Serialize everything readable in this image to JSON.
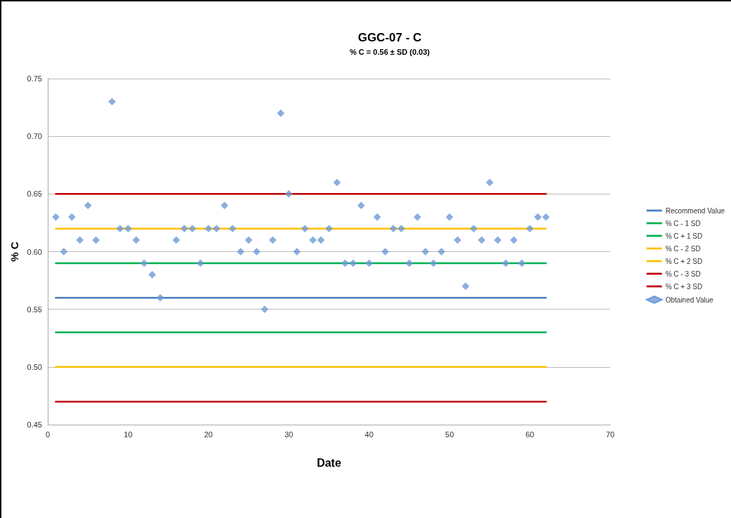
{
  "chart_data": {
    "type": "line",
    "title": "GGC-07 - C",
    "subtitle": "% C = 0.56 ± SD (0.03)",
    "xlabel": "Date",
    "ylabel": "% C",
    "xlim": [
      0,
      70
    ],
    "xticks": [
      0,
      10,
      20,
      30,
      40,
      50,
      60,
      70
    ],
    "ylim": [
      0.45,
      0.75
    ],
    "yticks": [
      0.45,
      {
        "value": 0.5,
        "label": "0.50"
      },
      0.55,
      {
        "value": 0.6,
        "label": "0.60"
      },
      0.65,
      {
        "value": 0.7,
        "label": "0.70"
      },
      0.75
    ],
    "grid": "y",
    "legend": "right",
    "line_style": "solid",
    "series": [
      {
        "name": "Recommend Value",
        "color": "#4a7ebb",
        "x": [
          1,
          62
        ],
        "values": [
          0.56,
          0.56
        ]
      },
      {
        "name": "% C - 1 SD",
        "color": "#00b050",
        "x": [
          1,
          62
        ],
        "values": [
          0.53,
          0.53
        ]
      },
      {
        "name": "% C + 1 SD",
        "color": "#00b050",
        "x": [
          1,
          62
        ],
        "values": [
          0.59,
          0.59
        ]
      },
      {
        "name": "% C - 2 SD",
        "color": "#ffc000",
        "x": [
          1,
          62
        ],
        "values": [
          0.5,
          0.5
        ]
      },
      {
        "name": "% C + 2 SD",
        "color": "#ffc000",
        "x": [
          1,
          62
        ],
        "values": [
          0.62,
          0.62
        ]
      },
      {
        "name": "% C - 3 SD",
        "color": "#c00000",
        "x": [
          1,
          62
        ],
        "values": [
          0.47,
          0.47
        ]
      },
      {
        "name": "% C + 3 SD",
        "color": "#c00000",
        "x": [
          1,
          62
        ],
        "values": [
          0.65,
          0.65
        ]
      },
      {
        "name": "Obtained Value",
        "type": "scatter",
        "marker": "diamond",
        "color": "#6f9ad6",
        "x": [
          1,
          2,
          3,
          4,
          5,
          6,
          8,
          9,
          10,
          11,
          12,
          13,
          14,
          16,
          17,
          18,
          19,
          20,
          21,
          22,
          23,
          24,
          25,
          26,
          27,
          28,
          29,
          30,
          31,
          32,
          33,
          34,
          35,
          36,
          37,
          38,
          39,
          40,
          41,
          42,
          43,
          44,
          45,
          46,
          47,
          48,
          49,
          50,
          51,
          52,
          53,
          54,
          55,
          56,
          57,
          58,
          59,
          60,
          61,
          62
        ],
        "values": [
          0.63,
          0.6,
          0.63,
          0.61,
          0.64,
          0.61,
          0.73,
          0.62,
          0.62,
          0.61,
          0.59,
          0.58,
          0.56,
          0.61,
          0.62,
          0.62,
          0.59,
          0.62,
          0.62,
          0.64,
          0.62,
          0.6,
          0.61,
          0.6,
          0.55,
          0.61,
          0.72,
          0.65,
          0.6,
          0.62,
          0.61,
          0.61,
          0.62,
          0.66,
          0.59,
          0.59,
          0.64,
          0.59,
          0.63,
          0.6,
          0.62,
          0.62,
          0.59,
          0.63,
          0.6,
          0.59,
          0.6,
          0.63,
          0.61,
          0.57,
          0.62,
          0.61,
          0.66,
          0.61,
          0.59,
          0.61,
          0.59,
          0.62,
          0.63,
          0.63
        ]
      }
    ]
  }
}
